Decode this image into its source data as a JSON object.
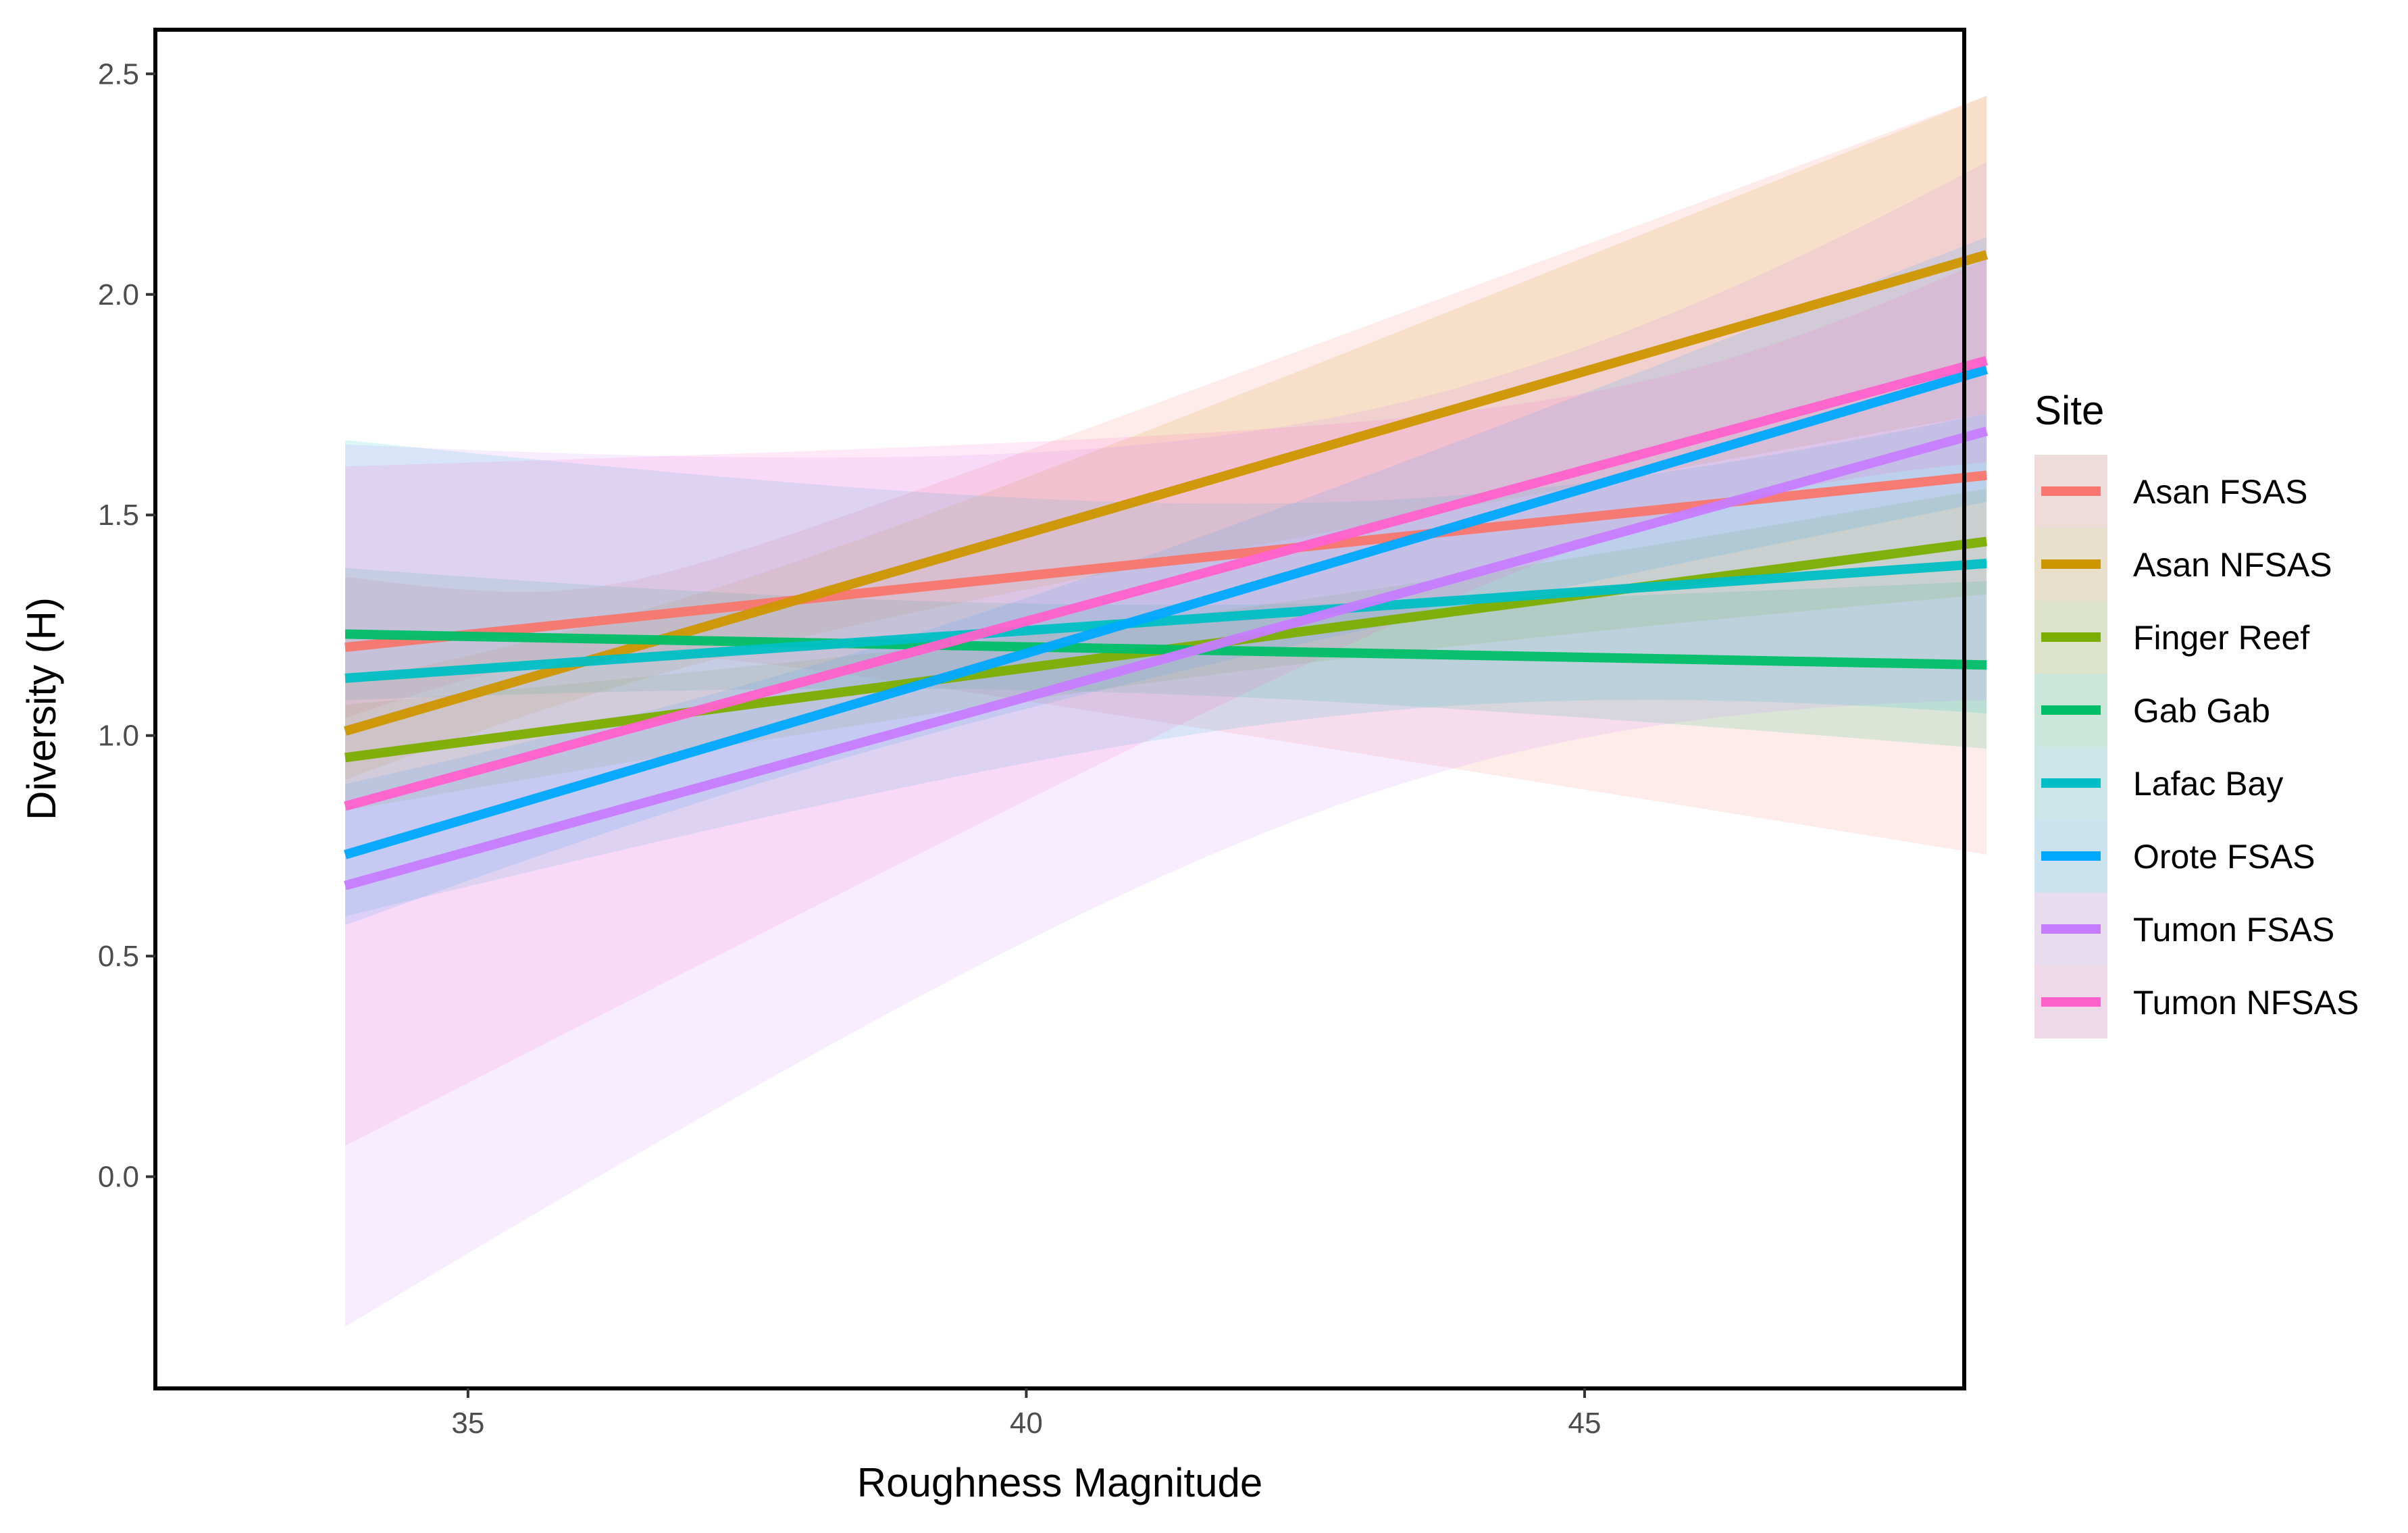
{
  "chart_data": {
    "type": "line",
    "title": "",
    "xlabel": "Roughness Magnitude",
    "ylabel": "Diversity (H)",
    "xlim": [
      32.2,
      48.4
    ],
    "ylim": [
      -0.48,
      2.6
    ],
    "xticks": [
      35,
      40,
      45
    ],
    "xtick_labels": [
      "35",
      "40",
      "45"
    ],
    "yticks": [
      0.0,
      0.5,
      1.0,
      1.5,
      2.0,
      2.5
    ],
    "ytick_labels": [
      "0.0",
      "0.5",
      "1.0",
      "1.5",
      "2.0",
      "2.5"
    ],
    "grid": false,
    "legend": {
      "title": "Site",
      "position": "right"
    },
    "x_range": [
      33.9,
      48.6
    ],
    "series": [
      {
        "name": "Asan FSAS",
        "color": "#F8766D",
        "y": [
          1.2,
          1.59
        ],
        "ci_lower": [
          1.04,
          0.73
        ],
        "ci_upper": [
          1.36,
          2.45
        ]
      },
      {
        "name": "Asan NFSAS",
        "color": "#CD9600",
        "y": [
          1.01,
          2.09
        ],
        "ci_lower": [
          0.9,
          1.73
        ],
        "ci_upper": [
          1.12,
          2.45
        ]
      },
      {
        "name": "Finger Reef",
        "color": "#7CAE00",
        "y": [
          0.95,
          1.44
        ],
        "ci_lower": [
          0.83,
          1.32
        ],
        "ci_upper": [
          1.07,
          1.56
        ]
      },
      {
        "name": "Gab Gab",
        "color": "#00BE67",
        "y": [
          1.23,
          1.16
        ],
        "ci_lower": [
          1.08,
          0.97
        ],
        "ci_upper": [
          1.38,
          1.35
        ]
      },
      {
        "name": "Lafac Bay",
        "color": "#00BFC4",
        "y": [
          1.13,
          1.39
        ],
        "ci_lower": [
          0.59,
          1.05
        ],
        "ci_upper": [
          1.67,
          1.73
        ]
      },
      {
        "name": "Orote FSAS",
        "color": "#00A9FF",
        "y": [
          0.73,
          1.83
        ],
        "ci_lower": [
          0.57,
          1.53
        ],
        "ci_upper": [
          0.89,
          2.13
        ]
      },
      {
        "name": "Tumon FSAS",
        "color": "#C77CFF",
        "y": [
          0.66,
          1.69
        ],
        "ci_lower": [
          -0.34,
          1.08
        ],
        "ci_upper": [
          1.66,
          2.3
        ]
      },
      {
        "name": "Tumon NFSAS",
        "color": "#FF61CC",
        "y": [
          0.84,
          1.85
        ],
        "ci_lower": [
          0.07,
          1.62
        ],
        "ci_upper": [
          1.61,
          2.08
        ]
      }
    ]
  }
}
